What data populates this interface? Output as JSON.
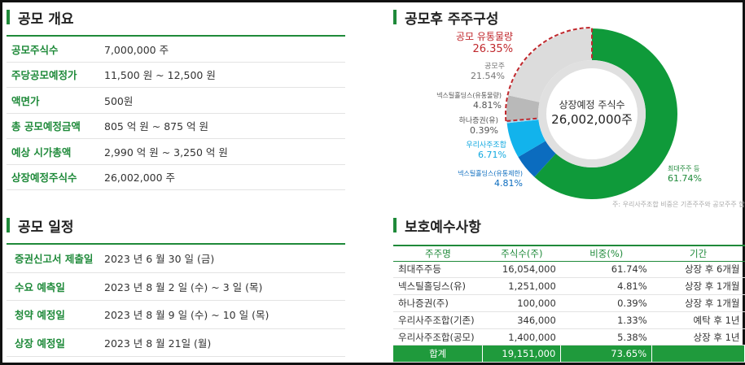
{
  "overview": {
    "title": "공모 개요",
    "rows": [
      {
        "label": "공모주식수",
        "value": "7,000,000 주"
      },
      {
        "label": "주당공모예정가",
        "value": "11,500 원 ~ 12,500 원"
      },
      {
        "label": "액면가",
        "value": "500원"
      },
      {
        "label": "총 공모예정금액",
        "value": "805 억 원 ~ 875 억 원"
      },
      {
        "label": "예상 시가총액",
        "value": "2,990 억 원 ~ 3,250 억 원"
      },
      {
        "label": "상장예정주식수",
        "value": "26,002,000 주"
      }
    ]
  },
  "schedule": {
    "title": "공모 일정",
    "rows": [
      {
        "label": "증권신고서 제출일",
        "value": "2023 년 6 월 30 일 (금)"
      },
      {
        "label": "수요 예측일",
        "value": "2023 년 8 월 2 일 (수) ~ 3 일 (목)"
      },
      {
        "label": "청약 예정일",
        "value": "2023 년 8 월 9 일 (수) ~ 10 일 (목)"
      },
      {
        "label": "상장 예정일",
        "value": "2023 년 8 월 21일 (월)"
      }
    ]
  },
  "composition": {
    "title": "공모후 주주구성",
    "center_label": "상장예정 주식수",
    "center_value": "26,002,000주",
    "note": "주: 우리사주조합 비중은 기존주주와 공모주주 합산",
    "labels": {
      "float_name": "공모 유통물량",
      "float_pct": "26.35%",
      "public_name": "공모주",
      "public_pct": "21.54%",
      "nexteel_lock_name": "넥스틸홀딩스(유통물량)",
      "nexteel_lock_pct": "4.81%",
      "hana_name": "하나증권(유)",
      "hana_pct": "0.39%",
      "esop_name": "우리사주조합",
      "esop_pct": "6.71%",
      "nexteel_rest_name": "넥스틸홀딩스(유통제한)",
      "nexteel_rest_pct": "4.81%",
      "major_name": "최대주주 등",
      "major_pct": "61.74%"
    }
  },
  "chart_data": {
    "type": "pie",
    "title": "공모후 주주구성",
    "slices": [
      {
        "name": "최대주주 등",
        "value": 61.74,
        "color": "#0f9a3a"
      },
      {
        "name": "넥스틸홀딩스(유통제한)",
        "value": 4.81,
        "color": "#0b6cbf"
      },
      {
        "name": "우리사주조합",
        "value": 6.71,
        "color": "#12b3ec"
      },
      {
        "name": "하나증권(유)",
        "value": 0.39,
        "color": "#9fdcf5"
      },
      {
        "name": "넥스틸홀딩스(유통물량)",
        "value": 4.81,
        "color": "#b9b9b9"
      },
      {
        "name": "공모주",
        "value": 21.54,
        "color": "#dcdcdc"
      }
    ],
    "highlight": {
      "name": "공모 유통물량",
      "value": 26.35,
      "color": "#c0282d"
    }
  },
  "lockup": {
    "title": "보호예수사항",
    "headers": [
      "주주명",
      "주식수(주)",
      "비중(%)",
      "기간"
    ],
    "rows": [
      [
        "최대주주등",
        "16,054,000",
        "61.74%",
        "상장 후 6개월"
      ],
      [
        "넥스틸홀딩스(유)",
        "1,251,000",
        "4.81%",
        "상장 후 1개월"
      ],
      [
        "하나증권(주)",
        "100,000",
        "0.39%",
        "상장 후 1개월"
      ],
      [
        "우리사주조합(기존)",
        "346,000",
        "1.33%",
        "예탁 후 1년"
      ],
      [
        "우리사주조합(공모)",
        "1,400,000",
        "5.38%",
        "상장 후 1년"
      ]
    ],
    "total": [
      "합계",
      "19,151,000",
      "73.65%",
      ""
    ]
  }
}
